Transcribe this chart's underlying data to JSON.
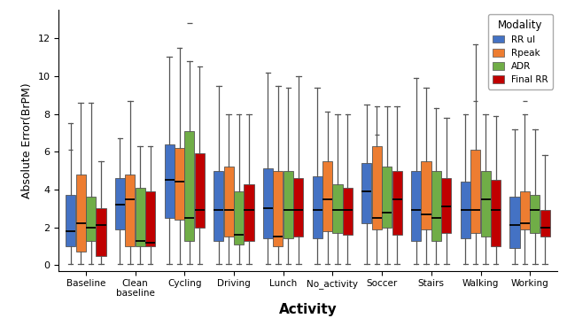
{
  "title": "",
  "xlabel": "Activity",
  "ylabel": "Absolute Error(BrPM)",
  "categories": [
    "Baseline",
    "Clean\nbaseline",
    "Cycling",
    "Driving",
    "Lunch",
    "No_activity",
    "Soccer",
    "Stairs",
    "Walking",
    "Working"
  ],
  "modalities": [
    "RR ul",
    "Rpeak",
    "ADR",
    "Final RR"
  ],
  "colors": [
    "#4472C4",
    "#ED7D31",
    "#70AD47",
    "#C00000"
  ],
  "ylim": [
    -0.3,
    13.5
  ],
  "yticks": [
    0,
    2,
    4,
    6,
    8,
    10,
    12
  ],
  "legend_title": "Modality",
  "boxplot_data": {
    "Baseline": {
      "RR ul": {
        "whislo": 0.05,
        "q1": 1.0,
        "med": 1.8,
        "q3": 3.7,
        "whishi": 7.5,
        "fliers": [
          6.1
        ]
      },
      "Rpeak": {
        "whislo": 0.05,
        "q1": 0.7,
        "med": 2.2,
        "q3": 4.8,
        "whishi": 8.6,
        "fliers": []
      },
      "ADR": {
        "whislo": 0.05,
        "q1": 1.3,
        "med": 2.0,
        "q3": 3.6,
        "whishi": 8.6,
        "fliers": []
      },
      "Final RR": {
        "whislo": 0.05,
        "q1": 0.5,
        "med": 2.1,
        "q3": 3.0,
        "whishi": 5.5,
        "fliers": []
      }
    },
    "Clean\nbaseline": {
      "RR ul": {
        "whislo": 0.05,
        "q1": 1.9,
        "med": 3.2,
        "q3": 4.6,
        "whishi": 6.7,
        "fliers": []
      },
      "Rpeak": {
        "whislo": 0.05,
        "q1": 1.0,
        "med": 3.5,
        "q3": 4.8,
        "whishi": 8.7,
        "fliers": []
      },
      "ADR": {
        "whislo": 0.05,
        "q1": 1.0,
        "med": 1.3,
        "q3": 4.1,
        "whishi": 6.3,
        "fliers": []
      },
      "Final RR": {
        "whislo": 0.05,
        "q1": 1.0,
        "med": 1.2,
        "q3": 3.9,
        "whishi": 6.3,
        "fliers": []
      }
    },
    "Cycling": {
      "RR ul": {
        "whislo": 0.05,
        "q1": 2.5,
        "med": 4.5,
        "q3": 6.4,
        "whishi": 11.0,
        "fliers": []
      },
      "Rpeak": {
        "whislo": 0.05,
        "q1": 2.4,
        "med": 4.4,
        "q3": 6.2,
        "whishi": 11.5,
        "fliers": []
      },
      "ADR": {
        "whislo": 0.05,
        "q1": 1.3,
        "med": 2.5,
        "q3": 7.1,
        "whishi": 10.8,
        "fliers": [
          12.8
        ]
      },
      "Final RR": {
        "whislo": 0.05,
        "q1": 2.0,
        "med": 2.9,
        "q3": 5.9,
        "whishi": 10.5,
        "fliers": []
      }
    },
    "Driving": {
      "RR ul": {
        "whislo": 0.05,
        "q1": 1.3,
        "med": 2.9,
        "q3": 5.0,
        "whishi": 9.5,
        "fliers": []
      },
      "Rpeak": {
        "whislo": 0.05,
        "q1": 1.5,
        "med": 2.9,
        "q3": 5.2,
        "whishi": 8.0,
        "fliers": []
      },
      "ADR": {
        "whislo": 0.05,
        "q1": 1.1,
        "med": 1.6,
        "q3": 3.9,
        "whishi": 8.0,
        "fliers": []
      },
      "Final RR": {
        "whislo": 0.05,
        "q1": 1.3,
        "med": 2.9,
        "q3": 4.3,
        "whishi": 8.0,
        "fliers": []
      }
    },
    "Lunch": {
      "RR ul": {
        "whislo": 0.05,
        "q1": 1.4,
        "med": 3.0,
        "q3": 5.1,
        "whishi": 10.2,
        "fliers": []
      },
      "Rpeak": {
        "whislo": 0.05,
        "q1": 1.0,
        "med": 1.5,
        "q3": 5.0,
        "whishi": 9.5,
        "fliers": []
      },
      "ADR": {
        "whislo": 0.05,
        "q1": 1.4,
        "med": 2.9,
        "q3": 5.0,
        "whishi": 9.4,
        "fliers": []
      },
      "Final RR": {
        "whislo": 0.05,
        "q1": 1.5,
        "med": 2.9,
        "q3": 4.6,
        "whishi": 10.0,
        "fliers": []
      }
    },
    "No_activity": {
      "RR ul": {
        "whislo": 0.05,
        "q1": 1.4,
        "med": 2.9,
        "q3": 4.7,
        "whishi": 9.4,
        "fliers": []
      },
      "Rpeak": {
        "whislo": 0.05,
        "q1": 1.8,
        "med": 3.5,
        "q3": 5.5,
        "whishi": 8.1,
        "fliers": []
      },
      "ADR": {
        "whislo": 0.05,
        "q1": 1.7,
        "med": 2.9,
        "q3": 4.3,
        "whishi": 8.0,
        "fliers": []
      },
      "Final RR": {
        "whislo": 0.05,
        "q1": 1.6,
        "med": 2.9,
        "q3": 4.1,
        "whishi": 8.0,
        "fliers": []
      }
    },
    "Soccer": {
      "RR ul": {
        "whislo": 0.05,
        "q1": 2.2,
        "med": 3.9,
        "q3": 5.4,
        "whishi": 8.5,
        "fliers": []
      },
      "Rpeak": {
        "whislo": 0.05,
        "q1": 1.9,
        "med": 2.5,
        "q3": 6.3,
        "whishi": 8.4,
        "fliers": [
          6.9
        ]
      },
      "ADR": {
        "whislo": 0.05,
        "q1": 2.0,
        "med": 2.8,
        "q3": 5.2,
        "whishi": 8.4,
        "fliers": []
      },
      "Final RR": {
        "whislo": 0.05,
        "q1": 1.6,
        "med": 3.5,
        "q3": 5.0,
        "whishi": 8.4,
        "fliers": []
      }
    },
    "Stairs": {
      "RR ul": {
        "whislo": 0.05,
        "q1": 1.3,
        "med": 2.9,
        "q3": 5.0,
        "whishi": 9.9,
        "fliers": []
      },
      "Rpeak": {
        "whislo": 0.05,
        "q1": 1.9,
        "med": 2.7,
        "q3": 5.5,
        "whishi": 9.4,
        "fliers": []
      },
      "ADR": {
        "whislo": 0.05,
        "q1": 1.3,
        "med": 2.5,
        "q3": 5.0,
        "whishi": 8.3,
        "fliers": []
      },
      "Final RR": {
        "whislo": 0.05,
        "q1": 1.7,
        "med": 3.1,
        "q3": 4.6,
        "whishi": 7.8,
        "fliers": []
      }
    },
    "Walking": {
      "RR ul": {
        "whislo": 0.05,
        "q1": 1.4,
        "med": 2.9,
        "q3": 4.4,
        "whishi": 8.0,
        "fliers": []
      },
      "Rpeak": {
        "whislo": 0.05,
        "q1": 1.7,
        "med": 2.9,
        "q3": 6.1,
        "whishi": 11.7,
        "fliers": [
          8.7
        ]
      },
      "ADR": {
        "whislo": 0.05,
        "q1": 1.5,
        "med": 3.5,
        "q3": 5.0,
        "whishi": 8.0,
        "fliers": []
      },
      "Final RR": {
        "whislo": 0.05,
        "q1": 1.0,
        "med": 2.9,
        "q3": 4.5,
        "whishi": 7.9,
        "fliers": []
      }
    },
    "Working": {
      "RR ul": {
        "whislo": 0.05,
        "q1": 0.9,
        "med": 2.1,
        "q3": 3.6,
        "whishi": 7.2,
        "fliers": []
      },
      "Rpeak": {
        "whislo": 0.05,
        "q1": 1.9,
        "med": 2.2,
        "q3": 3.9,
        "whishi": 8.0,
        "fliers": [
          8.7
        ]
      },
      "ADR": {
        "whislo": 0.05,
        "q1": 1.7,
        "med": 2.9,
        "q3": 3.7,
        "whishi": 7.2,
        "fliers": []
      },
      "Final RR": {
        "whislo": 0.05,
        "q1": 1.5,
        "med": 2.0,
        "q3": 2.9,
        "whishi": 5.8,
        "fliers": []
      }
    }
  }
}
